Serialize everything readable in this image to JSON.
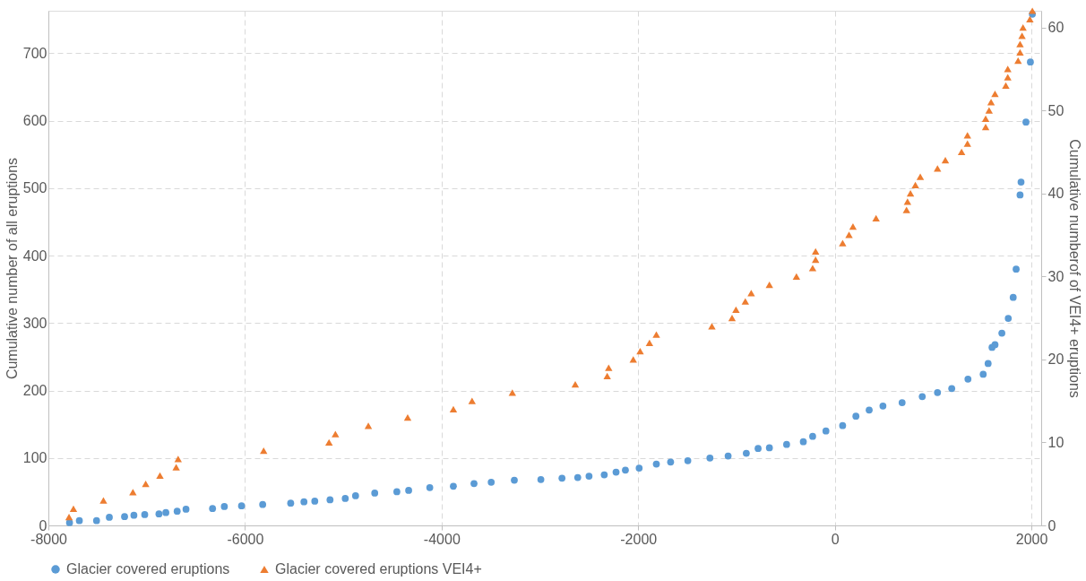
{
  "chart_data": {
    "type": "scatter",
    "xlabel": null,
    "ylabel": "Cumulative number of all eruptions",
    "y2label": "Cumulative numberof of VEI4+ eruptions",
    "xlim": [
      -8000,
      2100
    ],
    "xticks": [
      -8000,
      -6000,
      -4000,
      -2000,
      0,
      2000
    ],
    "ylim": [
      0,
      763
    ],
    "yticks": [
      0,
      100,
      200,
      300,
      400,
      500,
      600,
      700
    ],
    "y2lim": [
      0,
      62
    ],
    "y2ticks": [
      0,
      10,
      20,
      30,
      40,
      50,
      60
    ],
    "grid": true,
    "legend": "bottom",
    "series": [
      {
        "name": "Glacier covered eruptions",
        "color": "#5b9bd5",
        "marker": "circle",
        "axis": "y",
        "x": [
          -7785,
          -7685,
          -7510,
          -7380,
          -7225,
          -7130,
          -7020,
          -6875,
          -6805,
          -6690,
          -6600,
          -6330,
          -6210,
          -6035,
          -5820,
          -5535,
          -5400,
          -5290,
          -5135,
          -4980,
          -4875,
          -4680,
          -4455,
          -4335,
          -4120,
          -3880,
          -3670,
          -3495,
          -3260,
          -2990,
          -2775,
          -2615,
          -2500,
          -2345,
          -2225,
          -2130,
          -1990,
          -1815,
          -1670,
          -1495,
          -1270,
          -1085,
          -900,
          -780,
          -665,
          -490,
          -320,
          -225,
          -90,
          80,
          215,
          350,
          490,
          685,
          890,
          1045,
          1190,
          1355,
          1510,
          1560,
          1600,
          1630,
          1700,
          1765,
          1815,
          1845,
          1885,
          1895,
          1945,
          1990,
          2010
        ],
        "values": [
          4,
          7,
          7,
          12,
          13,
          15,
          16,
          17,
          19,
          21,
          24,
          25,
          28,
          29,
          31,
          33,
          35,
          36,
          38,
          40,
          44,
          48,
          50,
          52,
          56,
          58,
          62,
          64,
          67,
          68,
          70,
          71,
          73,
          75,
          79,
          82,
          85,
          91,
          94,
          96,
          100,
          103,
          107,
          114,
          115,
          120,
          124,
          132,
          140,
          148,
          162,
          171,
          177,
          182,
          191,
          197,
          203,
          217,
          224,
          240,
          264,
          268,
          285,
          307,
          338,
          380,
          490,
          509,
          598,
          687,
          758
        ]
      },
      {
        "name": "Glacier covered eruptions VEI4+",
        "color": "#ed7d31",
        "marker": "triangle",
        "axis": "y2",
        "x": [
          -7790,
          -7745,
          -7440,
          -7140,
          -7010,
          -6865,
          -6700,
          -6680,
          -5810,
          -5145,
          -5080,
          -4745,
          -4345,
          -3880,
          -3690,
          -3280,
          -2640,
          -2315,
          -2300,
          -2050,
          -1980,
          -1885,
          -1815,
          -1250,
          -1045,
          -1005,
          -910,
          -850,
          -665,
          -390,
          -225,
          -195,
          -195,
          145,
          80,
          185,
          420,
          730,
          740,
          770,
          820,
          870,
          1045,
          1125,
          1290,
          1350,
          1350,
          1535,
          1535,
          1570,
          1590,
          1630,
          1740,
          1760,
          1760,
          1865,
          1885,
          1885,
          1905,
          1915,
          1985,
          2010
        ],
        "values": [
          1,
          2,
          3,
          4,
          5,
          6,
          7,
          8,
          9,
          10,
          11,
          12,
          13,
          14,
          15,
          16,
          17,
          18,
          19,
          20,
          21,
          22,
          23,
          24,
          25,
          26,
          27,
          28,
          29,
          30,
          31,
          32,
          33,
          35,
          34,
          36,
          37,
          38,
          39,
          40,
          41,
          42,
          43,
          44,
          45,
          46,
          47,
          48,
          49,
          50,
          51,
          52,
          53,
          54,
          55,
          56,
          57,
          58,
          59,
          60,
          61,
          62
        ]
      }
    ]
  }
}
